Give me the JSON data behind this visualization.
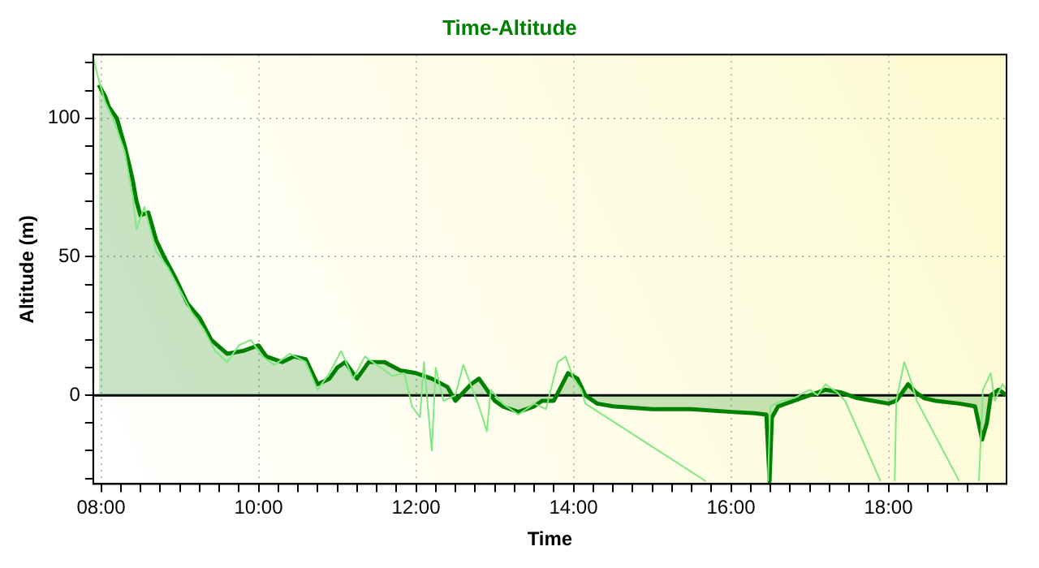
{
  "chart_data": {
    "type": "line",
    "title": "Time-Altitude",
    "xlabel": "Time",
    "ylabel": "Altitude (m)",
    "xlim": [
      7.9,
      19.5
    ],
    "ylim": [
      -32,
      123
    ],
    "xticks": [
      {
        "value": 8,
        "label": "08:00"
      },
      {
        "value": 8.25,
        "label": null
      },
      {
        "value": 8.5,
        "label": null
      },
      {
        "value": 8.75,
        "label": null
      },
      {
        "value": 9,
        "label": null
      },
      {
        "value": 9.25,
        "label": null
      },
      {
        "value": 9.5,
        "label": null
      },
      {
        "value": 9.75,
        "label": null
      },
      {
        "value": 10,
        "label": "10:00"
      },
      {
        "value": 10.25,
        "label": null
      },
      {
        "value": 10.5,
        "label": null
      },
      {
        "value": 10.75,
        "label": null
      },
      {
        "value": 11,
        "label": null
      },
      {
        "value": 11.25,
        "label": null
      },
      {
        "value": 11.5,
        "label": null
      },
      {
        "value": 11.75,
        "label": null
      },
      {
        "value": 12,
        "label": "12:00"
      },
      {
        "value": 12.25,
        "label": null
      },
      {
        "value": 12.5,
        "label": null
      },
      {
        "value": 12.75,
        "label": null
      },
      {
        "value": 13,
        "label": null
      },
      {
        "value": 13.25,
        "label": null
      },
      {
        "value": 13.5,
        "label": null
      },
      {
        "value": 13.75,
        "label": null
      },
      {
        "value": 14,
        "label": "14:00"
      },
      {
        "value": 14.25,
        "label": null
      },
      {
        "value": 14.5,
        "label": null
      },
      {
        "value": 14.75,
        "label": null
      },
      {
        "value": 15,
        "label": null
      },
      {
        "value": 15.25,
        "label": null
      },
      {
        "value": 15.5,
        "label": null
      },
      {
        "value": 15.75,
        "label": null
      },
      {
        "value": 16,
        "label": "16:00"
      },
      {
        "value": 16.25,
        "label": null
      },
      {
        "value": 16.5,
        "label": null
      },
      {
        "value": 16.75,
        "label": null
      },
      {
        "value": 17,
        "label": null
      },
      {
        "value": 17.25,
        "label": null
      },
      {
        "value": 17.5,
        "label": null
      },
      {
        "value": 17.75,
        "label": null
      },
      {
        "value": 18,
        "label": "18:00"
      },
      {
        "value": 18.25,
        "label": null
      },
      {
        "value": 18.5,
        "label": null
      },
      {
        "value": 18.75,
        "label": null
      },
      {
        "value": 19,
        "label": null
      },
      {
        "value": 19.25,
        "label": null
      }
    ],
    "yticks": [
      {
        "value": -30,
        "label": null
      },
      {
        "value": -20,
        "label": null
      },
      {
        "value": -10,
        "label": null
      },
      0,
      {
        "value": 10,
        "label": null
      },
      {
        "value": 20,
        "label": null
      },
      {
        "value": 30,
        "label": null
      },
      {
        "value": 40,
        "label": null
      },
      50,
      {
        "value": 60,
        "label": null
      },
      {
        "value": 70,
        "label": null
      },
      {
        "value": 80,
        "label": null
      },
      {
        "value": 90,
        "label": null
      },
      100,
      {
        "value": 110,
        "label": null
      },
      {
        "value": 120,
        "label": null
      }
    ],
    "grid": true,
    "legend": false,
    "marker": "none",
    "ref_lines": [
      {
        "axis": "y",
        "value": 0,
        "label": null,
        "color": "#000000"
      }
    ],
    "series": [
      {
        "color": "#80e880",
        "x": [
          7.9,
          7.95,
          8.05,
          8.15,
          8.3,
          8.4,
          8.45,
          8.55,
          8.7,
          8.85,
          9.0,
          9.15,
          9.3,
          9.45,
          9.6,
          9.75,
          9.9,
          10.05,
          10.2,
          10.4,
          10.6,
          10.75,
          10.9,
          11.05,
          11.2,
          11.35,
          11.5,
          11.7,
          11.85,
          11.95,
          12.05,
          12.1,
          12.2,
          12.25,
          12.35,
          12.5,
          12.6,
          12.8,
          12.9,
          12.95,
          13.1,
          13.3,
          13.5,
          13.65,
          13.8,
          13.9,
          14.0,
          14.1,
          14.15,
          15.68,
          16.0,
          16.47,
          16.5,
          16.65,
          16.8,
          17.0,
          17.1,
          17.2,
          17.35,
          17.45,
          17.9,
          18.0,
          18.08,
          18.1,
          18.2,
          18.3,
          18.36,
          18.9,
          19.0,
          19.15,
          19.2,
          19.3,
          19.35,
          19.45,
          19.5
        ],
        "values": [
          122,
          116,
          106,
          100,
          88,
          72,
          60,
          68,
          52,
          46,
          38,
          30,
          24,
          16,
          12,
          18,
          20,
          14,
          11,
          15,
          12,
          2,
          8,
          16,
          6,
          14,
          11,
          7,
          8,
          -4,
          -8,
          12,
          -20,
          10,
          -2,
          0,
          11,
          -4,
          -13,
          2,
          -3,
          -7,
          -3,
          -5,
          12,
          14,
          6,
          2,
          -3,
          -31,
          null,
          -31,
          -4,
          -2,
          -1,
          2,
          0,
          4,
          1,
          -2,
          -31,
          null,
          -31,
          -2,
          12,
          4,
          -2,
          -31,
          null,
          -31,
          2,
          8,
          -2,
          4,
          2
        ]
      },
      {
        "type": "area",
        "color": "#008000",
        "x": [
          7.97,
          8.05,
          8.1,
          8.2,
          8.3,
          8.4,
          8.45,
          8.5,
          8.6,
          8.7,
          8.8,
          8.95,
          9.1,
          9.25,
          9.4,
          9.6,
          9.8,
          10.0,
          10.1,
          10.3,
          10.45,
          10.6,
          10.75,
          10.9,
          11.0,
          11.1,
          11.25,
          11.4,
          11.6,
          11.8,
          12.0,
          12.2,
          12.4,
          12.5,
          12.7,
          12.8,
          13.0,
          13.1,
          13.3,
          13.5,
          13.6,
          13.75,
          13.93,
          14.05,
          14.15,
          14.3,
          14.5,
          15.0,
          15.5,
          16.0,
          16.3,
          16.45,
          16.49,
          16.52,
          16.6,
          16.8,
          17.0,
          17.2,
          17.4,
          17.6,
          17.8,
          18.0,
          18.1,
          18.25,
          18.35,
          18.45,
          18.6,
          18.9,
          19.1,
          19.19,
          19.25,
          19.3,
          19.4,
          19.5
        ],
        "values": [
          112,
          108,
          104,
          100,
          90,
          78,
          70,
          65,
          66,
          56,
          50,
          42,
          33,
          28,
          20,
          15,
          16,
          18,
          14,
          12,
          14,
          13,
          4,
          6,
          10,
          12,
          6,
          12,
          12,
          9,
          8,
          6,
          3,
          -2,
          4,
          6,
          -2,
          -4,
          -6,
          -4,
          -2,
          -2,
          8,
          6,
          0,
          -3,
          -4,
          -5,
          -5,
          -6,
          -6.5,
          -7,
          -31,
          -8,
          -4,
          -2,
          0,
          2,
          1,
          -1,
          -2,
          -3,
          -2,
          4,
          1,
          -1,
          -2,
          -3,
          -4,
          -16,
          -10,
          0,
          2,
          0
        ]
      }
    ]
  }
}
